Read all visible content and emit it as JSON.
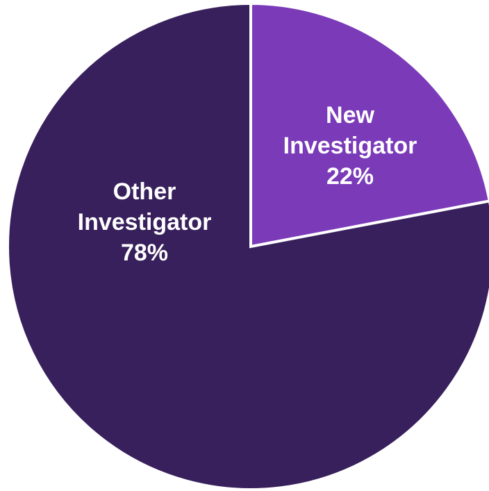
{
  "chart_data": {
    "type": "pie",
    "title": "",
    "slices": [
      {
        "label_lines": [
          "New",
          "Investigator"
        ],
        "value_label": "22%",
        "value": 22,
        "color": "#7b3bb9"
      },
      {
        "label_lines": [
          "Other",
          "Investigator"
        ],
        "value_label": "78%",
        "value": 78,
        "color": "#38205c"
      }
    ],
    "start_angle": "12 o'clock",
    "direction": "clockwise",
    "legend": "none"
  }
}
